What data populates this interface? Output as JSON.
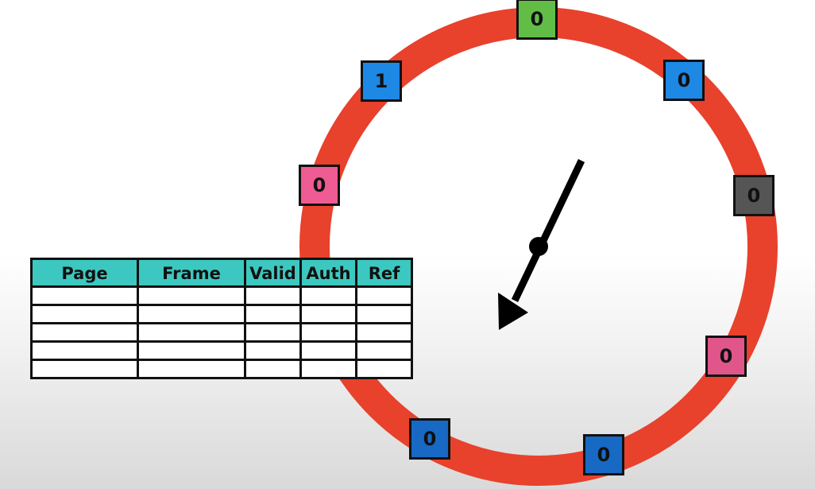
{
  "clock": {
    "ring_color": "#e8412c",
    "hand_color": "#000000",
    "frames": [
      {
        "value": "0",
        "color": "#62bd47"
      },
      {
        "value": "0",
        "color": "#1e88e5"
      },
      {
        "value": "0",
        "color": "#555555"
      },
      {
        "value": "0",
        "color": "#e0568a"
      },
      {
        "value": "0",
        "color": "#1769c4"
      },
      {
        "value": "0",
        "color": "#1769c4"
      },
      {
        "value": "0",
        "color": "#ef5b93"
      },
      {
        "value": "1",
        "color": "#1e88e5"
      }
    ]
  },
  "table": {
    "header_color": "#3cc8c0",
    "columns": [
      "Page",
      "Frame",
      "Valid",
      "Auth",
      "Ref"
    ],
    "rows": [
      [
        "",
        "",
        "",
        "",
        ""
      ],
      [
        "",
        "",
        "",
        "",
        ""
      ],
      [
        "",
        "",
        "",
        "",
        ""
      ],
      [
        "",
        "",
        "",
        "",
        ""
      ],
      [
        "",
        "",
        "",
        "",
        ""
      ]
    ]
  }
}
